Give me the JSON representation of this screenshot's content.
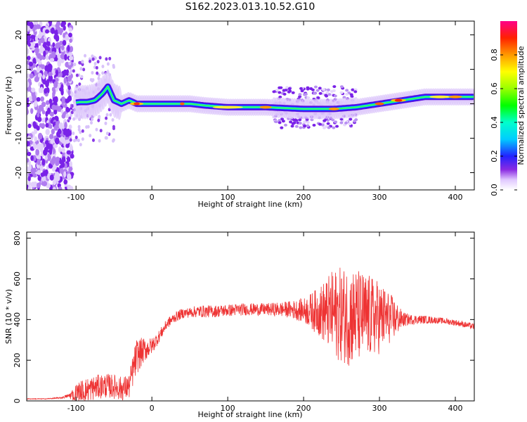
{
  "title": "S162.2023.013.10.52.G10",
  "chart_data": [
    {
      "type": "heatmap",
      "xlabel": "Height of straight line (km)",
      "ylabel": "Frequency (Hz)",
      "xlim": [
        -165,
        425
      ],
      "ylim": [
        -25,
        24
      ],
      "xticks": [
        -100,
        0,
        100,
        200,
        300,
        400
      ],
      "yticks": [
        -20,
        -10,
        0,
        10,
        20
      ],
      "colorbar": {
        "label": "Normalized spectral amplitude",
        "range": [
          0,
          1
        ],
        "ticks": [
          "0.0",
          "0.2",
          "0.4",
          "0.6",
          "0.8"
        ],
        "tick_values": [
          0.0,
          0.2,
          0.4,
          0.6,
          0.8
        ]
      },
      "ridge": {
        "x": [
          -110,
          -95,
          -85,
          -75,
          -65,
          -58,
          -50,
          -40,
          -30,
          -20,
          0,
          30,
          50,
          70,
          100,
          150,
          200,
          240,
          270,
          300,
          330,
          360,
          425
        ],
        "y": [
          0,
          0.5,
          0.5,
          1,
          3,
          5,
          1,
          0,
          1,
          0,
          0,
          0,
          0,
          -0.5,
          -1,
          -1,
          -1.5,
          -1.5,
          -1,
          0,
          1,
          2,
          2
        ]
      }
    },
    {
      "type": "line",
      "xlabel": "Height of straight line (km)",
      "ylabel": "SNR (10 * v/v)",
      "xlim": [
        -165,
        425
      ],
      "ylim": [
        0,
        830
      ],
      "xticks": [
        -100,
        0,
        100,
        200,
        300,
        400
      ],
      "yticks": [
        0,
        200,
        400,
        600,
        800
      ],
      "color": "#ee3333",
      "series": [
        {
          "x": [
            -165,
            -140,
            -120,
            -110,
            -100,
            -90,
            -80,
            -70,
            -60,
            -50,
            -40,
            -30,
            -25,
            -20,
            -10,
            0,
            10,
            20,
            30,
            40,
            50,
            60,
            80,
            100,
            120,
            150,
            180,
            200,
            220,
            240,
            260,
            280,
            300,
            320,
            330,
            340,
            360,
            380,
            400,
            425
          ],
          "y": [
            10,
            10,
            15,
            25,
            35,
            50,
            60,
            70,
            75,
            70,
            60,
            70,
            150,
            220,
            250,
            270,
            320,
            380,
            410,
            430,
            435,
            440,
            440,
            445,
            450,
            450,
            450,
            445,
            440,
            430,
            420,
            415,
            410,
            405,
            400,
            400,
            400,
            395,
            385,
            365
          ],
          "envelope": [
            2,
            2,
            4,
            10,
            50,
            60,
            60,
            60,
            60,
            60,
            60,
            60,
            80,
            90,
            60,
            40,
            30,
            25,
            25,
            25,
            25,
            30,
            30,
            30,
            30,
            30,
            40,
            60,
            120,
            220,
            250,
            220,
            180,
            100,
            40,
            25,
            20,
            15,
            15,
            15
          ]
        }
      ]
    }
  ]
}
